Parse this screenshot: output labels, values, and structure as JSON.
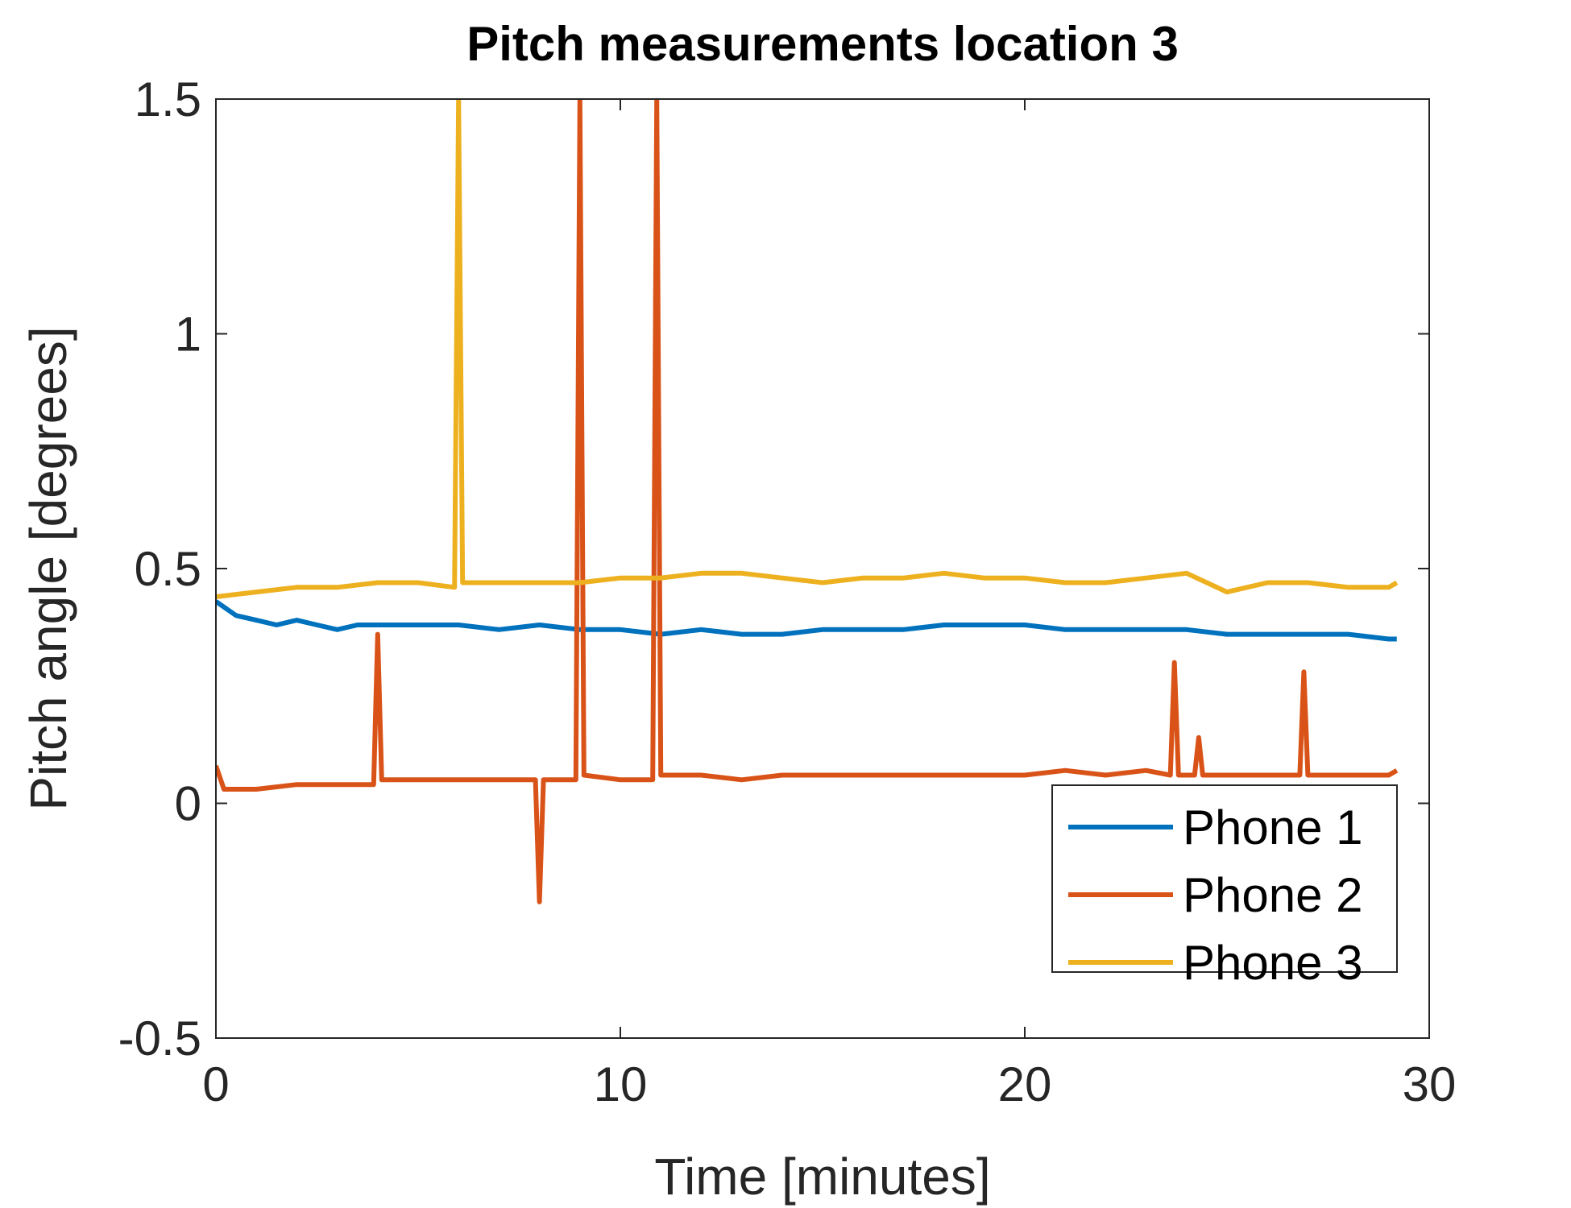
{
  "chart_data": {
    "type": "line",
    "title": "Pitch measurements location 3",
    "xlabel": "Time [minutes]",
    "ylabel": "Pitch angle [degrees]",
    "xlim": [
      0,
      30
    ],
    "ylim": [
      -0.5,
      1.5
    ],
    "xticks": [
      0,
      10,
      20,
      30
    ],
    "xtick_labels": [
      "0",
      "10",
      "20",
      "30"
    ],
    "yticks": [
      -0.5,
      0,
      0.5,
      1,
      1.5
    ],
    "ytick_labels": [
      "-0.5",
      "0",
      "0.5",
      "1",
      "1.5"
    ],
    "grid": false,
    "legend_position": "bottom-right",
    "series": [
      {
        "name": "Phone 1",
        "color": "#0072BD",
        "x": [
          0,
          0.5,
          1,
          1.5,
          2,
          2.5,
          3,
          3.5,
          4,
          5,
          6,
          7,
          8,
          9,
          10,
          11,
          12,
          13,
          14,
          15,
          16,
          17,
          18,
          19,
          20,
          21,
          22,
          23,
          24,
          25,
          26,
          27,
          28,
          29,
          29.2
        ],
        "y": [
          0.43,
          0.4,
          0.39,
          0.38,
          0.39,
          0.38,
          0.37,
          0.38,
          0.38,
          0.38,
          0.38,
          0.37,
          0.38,
          0.37,
          0.37,
          0.36,
          0.37,
          0.36,
          0.36,
          0.37,
          0.37,
          0.37,
          0.38,
          0.38,
          0.38,
          0.37,
          0.37,
          0.37,
          0.37,
          0.36,
          0.36,
          0.36,
          0.36,
          0.35,
          0.35
        ]
      },
      {
        "name": "Phone 2",
        "color": "#D95319",
        "x": [
          0,
          0.2,
          1,
          2,
          3,
          3.9,
          4,
          4.1,
          5,
          6,
          7,
          7.9,
          8,
          8.1,
          8.9,
          9,
          9.1,
          10,
          10.8,
          10.9,
          11,
          12,
          13,
          14,
          15,
          16,
          17,
          18,
          19,
          20,
          21,
          22,
          23,
          23.6,
          23.7,
          23.8,
          24.2,
          24.3,
          24.4,
          25,
          26,
          26.8,
          26.9,
          27,
          28,
          29,
          29.2
        ],
        "y": [
          0.08,
          0.03,
          0.03,
          0.04,
          0.04,
          0.04,
          0.36,
          0.05,
          0.05,
          0.05,
          0.05,
          0.05,
          -0.21,
          0.05,
          0.05,
          1.5,
          0.06,
          0.05,
          0.05,
          1.5,
          0.06,
          0.06,
          0.05,
          0.06,
          0.06,
          0.06,
          0.06,
          0.06,
          0.06,
          0.06,
          0.07,
          0.06,
          0.07,
          0.06,
          0.3,
          0.06,
          0.06,
          0.14,
          0.06,
          0.06,
          0.06,
          0.06,
          0.28,
          0.06,
          0.06,
          0.06,
          0.07
        ]
      },
      {
        "name": "Phone 3",
        "color": "#EDB120",
        "x": [
          0,
          1,
          2,
          3,
          4,
          5,
          5.9,
          6,
          6.1,
          7,
          8,
          9,
          10,
          11,
          12,
          13,
          14,
          15,
          16,
          17,
          18,
          19,
          20,
          21,
          22,
          23,
          24,
          25,
          26,
          27,
          28,
          29,
          29.2
        ],
        "y": [
          0.44,
          0.45,
          0.46,
          0.46,
          0.47,
          0.47,
          0.46,
          1.5,
          0.47,
          0.47,
          0.47,
          0.47,
          0.48,
          0.48,
          0.49,
          0.49,
          0.48,
          0.47,
          0.48,
          0.48,
          0.49,
          0.48,
          0.48,
          0.47,
          0.47,
          0.48,
          0.49,
          0.45,
          0.47,
          0.47,
          0.46,
          0.46,
          0.47
        ]
      }
    ]
  }
}
